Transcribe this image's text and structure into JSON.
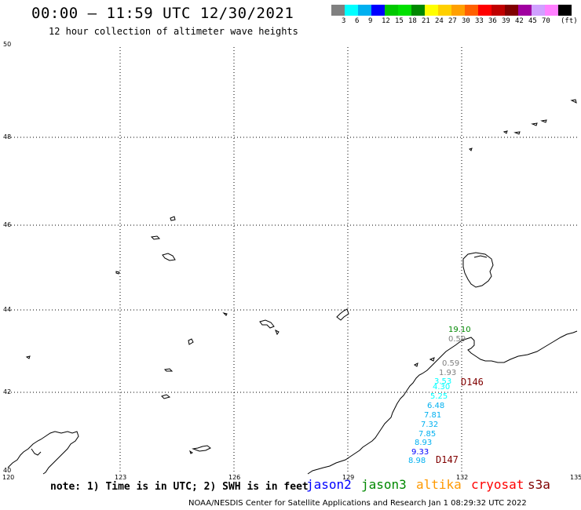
{
  "title": "00:00 – 11:59 UTC 12/30/2021",
  "subtitle": "12 hour collection of altimeter wave heights",
  "legend": {
    "colors": [
      "#808080",
      "#00ffff",
      "#00b0f0",
      "#0000ff",
      "#00c800",
      "#00e000",
      "#008800",
      "#ffff00",
      "#ffd000",
      "#ffa000",
      "#ff6000",
      "#ff0000",
      "#c00000",
      "#800000",
      "#a000a0",
      "#d0a0ff",
      "#ff80ff",
      "#000000"
    ],
    "labels": [
      "3",
      "6",
      "9",
      "12",
      "15",
      "18",
      "21",
      "24",
      "27",
      "30",
      "33",
      "36",
      "39",
      "42",
      "45",
      "70",
      "(ft)"
    ]
  },
  "map": {
    "lat_labels": [
      "50",
      "48",
      "46",
      "44",
      "42",
      "40"
    ],
    "lon_labels": [
      "120",
      "123",
      "126",
      "129",
      "132",
      "135"
    ],
    "passes": [
      {
        "id": "D146",
        "color": "#800000"
      },
      {
        "id": "D147",
        "color": "#800000"
      }
    ],
    "readings": [
      {
        "value": "19.10",
        "color": "#008800"
      },
      {
        "value": "0.59",
        "color": "#808080"
      },
      {
        "value": "0.59",
        "color": "#808080"
      },
      {
        "value": "1.93",
        "color": "#808080"
      },
      {
        "value": "3.53",
        "color": "#00ffff"
      },
      {
        "value": "4.30",
        "color": "#00ffff"
      },
      {
        "value": "5.25",
        "color": "#00ffff"
      },
      {
        "value": "6.48",
        "color": "#00b0f0"
      },
      {
        "value": "7.81",
        "color": "#00b0f0"
      },
      {
        "value": "7.32",
        "color": "#00b0f0"
      },
      {
        "value": "7.85",
        "color": "#00b0f0"
      },
      {
        "value": "8.93",
        "color": "#00b0f0"
      },
      {
        "value": "9.33",
        "color": "#0000ff"
      },
      {
        "value": "8.98",
        "color": "#00b0f0"
      }
    ]
  },
  "footer": {
    "note": "note: 1) Time is in UTC; 2) SWH is in feet",
    "satellites": [
      {
        "name": "jason2",
        "color": "#0000ff"
      },
      {
        "name": "jason3",
        "color": "#008800"
      },
      {
        "name": "altika",
        "color": "#ff9900"
      },
      {
        "name": "cryosat",
        "color": "#ff0000"
      },
      {
        "name": "s3a",
        "color": "#800000"
      }
    ],
    "credit": "NOAA/NESDIS Center for Satellite Applications and Research   Jan  1 08:29:32 UTC 2022"
  }
}
